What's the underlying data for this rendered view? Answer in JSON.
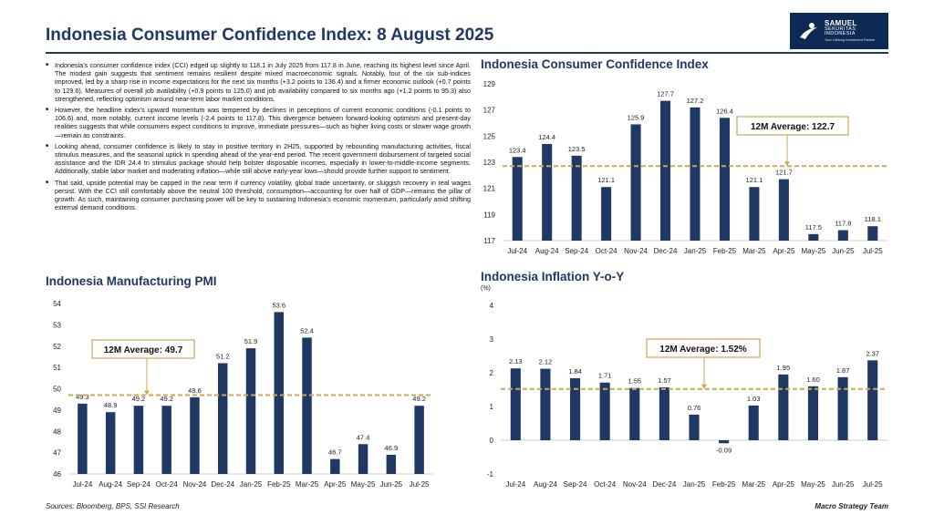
{
  "header": {
    "title": "Indonesia Consumer Confidence Index: 8 August 2025",
    "logo": {
      "line1": "SAMUEL",
      "line2": "SEKURITAS INDONESIA",
      "line3": "Your Lifelong Investment Partner"
    }
  },
  "bullets": [
    "Indonesia’s consumer confidence index (CCI) edged up slightly to 118.1 in July 2025 from 117.8 in June, reaching its highest level since April. The modest gain suggests that sentiment remains resilient despite mixed macroeconomic signals. Notably, four of the six sub-indices improved, led by a sharp rise in income expectations for the next six months (+3.2 points to 136.4) and a firmer economic outlook (+0.7 points to 129.6). Measures of overall job availability (+0.9 points to 125.0) and job availability compared to six months ago (+1.2 points to 95.3) also strengthened, reflecting optimism around near-term labor market conditions.",
    "However, the headline index’s upward momentum was tempered by declines in perceptions of current economic conditions (-0.1 points to 106.6) and, more notably, current income levels (-2.4 points to 117.8). This divergence between forward-looking optimism and present-day realities suggests that while consumers expect conditions to improve, immediate pressures—such as higher living costs or slower wage growth—remain as constraints.",
    "Looking ahead, consumer confidence is likely to stay in positive territory in 2H25, supported by rebounding manufacturing activities, fiscal stimulus measures, and the seasonal uptick in spending ahead of the year-end period. The recent government disbursement of targeted social assistance and the IDR 24.4 tn stimulus package should help bolster disposable incomes, especially in lower-to-middle-income segments. Additionally, stable labor market and moderating inflation—while still above early-year lows—should provide further support to sentiment.",
    "That said, upside potential may be capped in the near term if currency volatility, global trade uncertainty, or sluggish recovery in real wages persist. With the CCI still comfortably above the neutral 100 threshold, consumption—accounting for over half of GDP—remains the pillar of growth. As such, maintaining consumer purchasing power will be key to sustaining Indonesia’s economic momentum, particularly amid shifting external demand conditions."
  ],
  "footer": {
    "sources": "Sources: Bloomberg, BPS, SSI Research",
    "team": "Macro Strategy Team"
  },
  "colors": {
    "bar": "#1f3864",
    "avg_line": "#c9a85a",
    "title": "#1f3864"
  },
  "chart_data": [
    {
      "id": "cci",
      "type": "bar",
      "title": "Indonesia Consumer Confidence Index",
      "categories": [
        "Jul-24",
        "Aug-24",
        "Sep-24",
        "Oct-24",
        "Nov-24",
        "Dec-24",
        "Jan-25",
        "Feb-25",
        "Mar-25",
        "Apr-25",
        "May-25",
        "Jun-25",
        "Jul-25"
      ],
      "values": [
        123.4,
        124.4,
        123.5,
        121.1,
        125.9,
        127.7,
        127.2,
        126.4,
        121.1,
        121.7,
        117.5,
        117.8,
        118.1
      ],
      "labels": [
        "123.4",
        "124.4",
        "123.5",
        "121.1",
        "125.9",
        "127.7",
        "127.2",
        "126.4",
        "121.1",
        "121.7",
        "117.5",
        "117.8",
        "118.1"
      ],
      "ylim": [
        117,
        129
      ],
      "yticks": [
        117,
        119,
        121,
        123,
        125,
        127,
        129
      ],
      "average": 122.7,
      "average_label": "12M Average: 122.7",
      "unit": ""
    },
    {
      "id": "pmi",
      "type": "bar",
      "title": "Indonesia Manufacturing PMI",
      "categories": [
        "Jul-24",
        "Aug-24",
        "Sep-24",
        "Oct-24",
        "Nov-24",
        "Dec-24",
        "Jan-25",
        "Feb-25",
        "Mar-25",
        "Apr-25",
        "May-25",
        "Jun-25",
        "Jul-25"
      ],
      "values": [
        49.3,
        48.9,
        49.2,
        49.2,
        49.6,
        51.2,
        51.9,
        53.6,
        52.4,
        46.7,
        47.4,
        46.9,
        49.2
      ],
      "labels": [
        "49.3",
        "48.9",
        "49.2",
        "49.2",
        "49.6",
        "51.2",
        "51.9",
        "53.6",
        "52.4",
        "46.7",
        "47.4",
        "46.9",
        "49.2"
      ],
      "ylim": [
        46,
        54
      ],
      "yticks": [
        46,
        47,
        48,
        49,
        50,
        51,
        52,
        53,
        54
      ],
      "average": 49.7,
      "average_label": "12M Average: 49.7",
      "unit": ""
    },
    {
      "id": "inflation",
      "type": "bar",
      "title": "Indonesia Inflation Y-o-Y",
      "categories": [
        "Jul-24",
        "Aug-24",
        "Sep-24",
        "Oct-24",
        "Nov-24",
        "Dec-24",
        "Jan-25",
        "Feb-25",
        "Mar-25",
        "Apr-25",
        "May-25",
        "Jun-25",
        "Jul-25"
      ],
      "values": [
        2.13,
        2.12,
        1.84,
        1.71,
        1.55,
        1.57,
        0.76,
        -0.09,
        1.03,
        1.95,
        1.6,
        1.87,
        2.37
      ],
      "labels": [
        "2.13",
        "2.12",
        "1.84",
        "1.71",
        "1.55",
        "1.57",
        "0.76",
        "-0.09",
        "1.03",
        "1.95",
        "1.60",
        "1.87",
        "2.37"
      ],
      "ylim": [
        -1,
        4
      ],
      "yticks": [
        -1,
        0,
        1,
        2,
        3,
        4
      ],
      "average": 1.52,
      "average_label": "12M Average: 1.52%",
      "unit": "(%)"
    }
  ]
}
